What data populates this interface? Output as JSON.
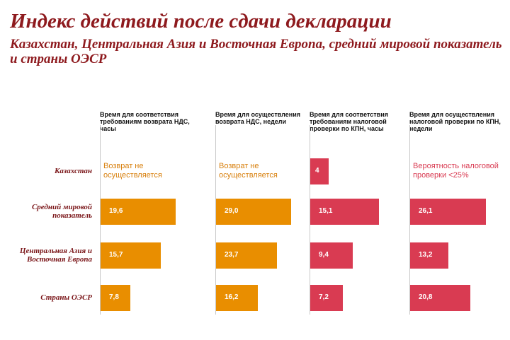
{
  "title": "Индекс действий после сдачи декларации",
  "subtitle": "Казахстан, Центральная Азия и Восточная Европа, средний мировой показатель и страны ОЭСР",
  "colors": {
    "orange": "#e98e00",
    "red": "#d93b52",
    "title": "#8e1a1e",
    "note_orange": "#d8800e",
    "note_red": "#d93b52"
  },
  "chart_data": {
    "type": "bar",
    "orientation": "horizontal",
    "title": "Индекс действий после сдачи декларации",
    "subtitle": "Казахстан, Центральная Азия и Восточная Европа, средний мировой показатель и страны ОЭСР",
    "categories": [
      "Казахстан",
      "Средний мировой показатель",
      "Центральная Азия и Восточная Европа",
      "Страны ОЭСР"
    ],
    "panels": [
      {
        "name": "Время для соответствия требованиям возврата НДС, часы",
        "color": "orange",
        "xlim": [
          0,
          25
        ],
        "values": [
          null,
          19.6,
          15.7,
          7.8
        ],
        "labels": [
          "",
          "19,6",
          "15,7",
          "7,8"
        ],
        "note": "Возврат не осуществляется"
      },
      {
        "name": "Время для осуществления возврата НДС, недели",
        "color": "orange",
        "xlim": [
          0,
          37
        ],
        "values": [
          null,
          29.0,
          23.7,
          16.2
        ],
        "labels": [
          "",
          "29,0",
          "23,7",
          "16,2"
        ],
        "note": "Возврат не осуществляется"
      },
      {
        "name": "Время для соответствия требованиям налоговой проверки по КПН, часы",
        "color": "red",
        "xlim": [
          0,
          21
        ],
        "values": [
          4,
          15.1,
          9.4,
          7.2
        ],
        "labels": [
          "4",
          "15,1",
          "9,4",
          "7,2"
        ],
        "note": ""
      },
      {
        "name": "Время для осуществления налоговой проверки по КПН, недели",
        "color": "red",
        "xlim": [
          0,
          33
        ],
        "values": [
          null,
          26.1,
          13.2,
          20.8
        ],
        "labels": [
          "",
          "26,1",
          "13,2",
          "20,8"
        ],
        "note": "Вероятность налоговой проверки <25%"
      }
    ]
  }
}
